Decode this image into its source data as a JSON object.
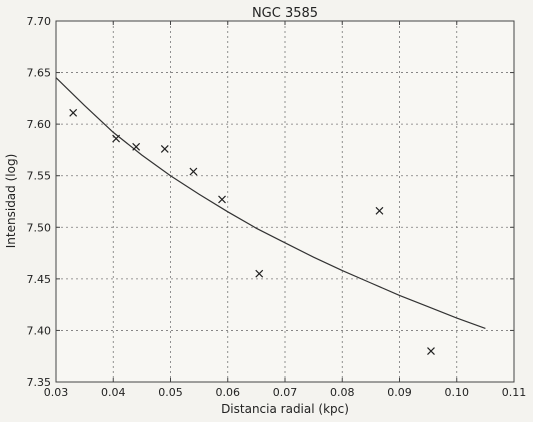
{
  "chart_data": {
    "type": "scatter",
    "title": "NGC 3585",
    "xlabel": "Distancia radial (kpc)",
    "ylabel": "Intensidad (log)",
    "xlim": [
      0.03,
      0.11
    ],
    "ylim": [
      7.35,
      7.7
    ],
    "grid": true,
    "x_ticks": [
      "0.03",
      "0.04",
      "0.05",
      "0.06",
      "0.07",
      "0.08",
      "0.09",
      "0.10",
      "0.11"
    ],
    "y_ticks": [
      "7.35",
      "7.40",
      "7.45",
      "7.50",
      "7.55",
      "7.60",
      "7.65",
      "7.70"
    ],
    "series": [
      {
        "marker": "x",
        "x": [
          0.033,
          0.0405,
          0.044,
          0.049,
          0.054,
          0.059,
          0.0655,
          0.0865,
          0.0955
        ],
        "y": [
          7.611,
          7.586,
          7.578,
          7.576,
          7.554,
          7.527,
          7.455,
          7.516,
          7.38
        ]
      },
      {
        "line": "fit",
        "x": [
          0.03,
          0.035,
          0.04,
          0.045,
          0.05,
          0.055,
          0.06,
          0.065,
          0.07,
          0.075,
          0.08,
          0.085,
          0.09,
          0.095,
          0.1,
          0.105
        ],
        "y": [
          7.645,
          7.618,
          7.592,
          7.57,
          7.55,
          7.532,
          7.515,
          7.499,
          7.485,
          7.471,
          7.458,
          7.446,
          7.434,
          7.423,
          7.412,
          7.402
        ]
      }
    ]
  }
}
